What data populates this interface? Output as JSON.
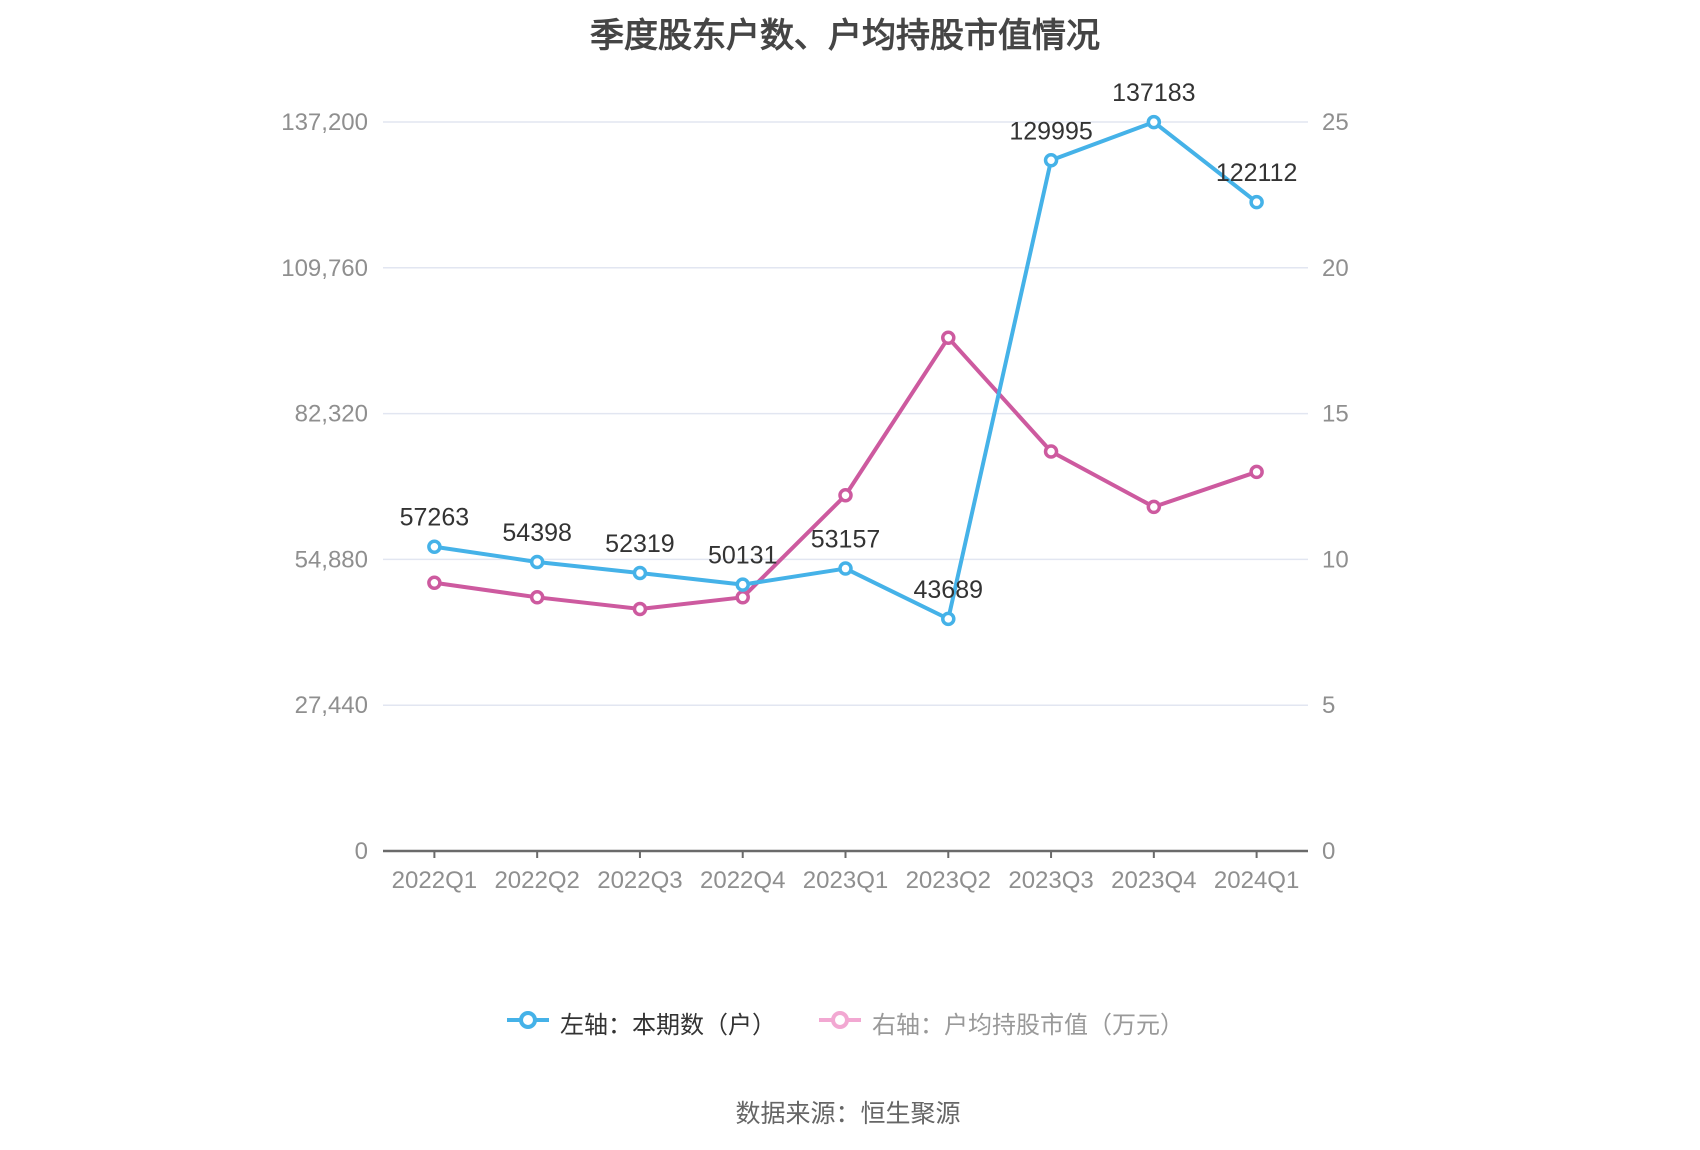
{
  "title": "季度股东户数、户均持股市值情况",
  "footer": "数据来源：恒生聚源",
  "legend": {
    "items": [
      {
        "label": "左轴：本期数（户）",
        "marker_color": "#45b2e8",
        "text_color": "#333333"
      },
      {
        "label": "右轴：户均持股市值（万元）",
        "marker_color": "#f2a8d2",
        "text_color": "#999999"
      }
    ]
  },
  "colors": {
    "blue_series": "#45b2e8",
    "pink_series": "#cd5a9f",
    "gridline": "#e2e6f1",
    "axis_line": "#6a6a6a",
    "axis_label": "#8f8f8f",
    "data_label": "#333333",
    "title": "#454545",
    "background": "#ffffff"
  },
  "chart_data": {
    "type": "line",
    "title": "季度股东户数、户均持股市值情况",
    "categories": [
      "2022Q1",
      "2022Q2",
      "2022Q3",
      "2022Q4",
      "2023Q1",
      "2023Q2",
      "2023Q3",
      "2023Q4",
      "2024Q1"
    ],
    "series": [
      {
        "name": "左轴：本期数（户）",
        "axis": "left",
        "color": "#45b2e8",
        "values": [
          57263,
          54398,
          52319,
          50131,
          53157,
          43689,
          129995,
          137183,
          122112
        ],
        "point_labels": [
          "57263",
          "54398",
          "52319",
          "50131",
          "53157",
          "43689",
          "129995",
          "137183",
          "122112"
        ],
        "labels_shown": true
      },
      {
        "name": "右轴：户均持股市值（万元）",
        "axis": "right",
        "color": "#cd5a9f",
        "values": [
          9.2,
          8.7,
          8.3,
          8.7,
          12.2,
          17.6,
          13.7,
          11.8,
          13.0
        ],
        "labels_shown": false
      }
    ],
    "left_axis": {
      "max": 137200,
      "ticks": [
        0,
        27440,
        54880,
        82320,
        109760,
        137200
      ],
      "tick_labels": [
        "0",
        "27,440",
        "54,880",
        "82,320",
        "109,760",
        "137,200"
      ]
    },
    "right_axis": {
      "max": 25,
      "ticks": [
        0,
        5,
        10,
        15,
        20,
        25
      ],
      "tick_labels": [
        "0",
        "5",
        "10",
        "15",
        "20",
        "25"
      ]
    },
    "grid": "horizontal",
    "legend_position": "bottom"
  }
}
